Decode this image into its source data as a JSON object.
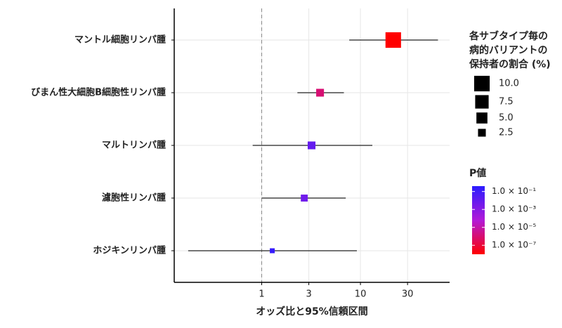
{
  "chart_data": {
    "type": "forest",
    "x_label": "オッズ比と95%信頼区間",
    "categories": [
      "マントル細胞リンパ腫",
      "びまん性大細胞B細胞性リンパ腫",
      "マルトリンパ腫",
      "濾胞性リンパ腫",
      "ホジキンリンパ腫"
    ],
    "values": [
      21.5,
      3.9,
      3.2,
      2.7,
      1.28
    ],
    "lower": [
      7.7,
      2.3,
      0.81,
      1.0,
      0.18
    ],
    "upper": [
      61,
      6.8,
      13.2,
      7.1,
      9.2
    ],
    "sizes": [
      10,
      2.5,
      2.5,
      2,
      1
    ],
    "p_values": [
      1e-08,
      1e-06,
      0.01,
      0.005,
      0.2
    ],
    "xscale": "log",
    "xlim": [
      0.13,
      80
    ],
    "xticks": [
      1,
      3,
      10,
      30
    ],
    "ref_line": 1,
    "grid": true,
    "size_legend": {
      "title": [
        "各サブタイプ毎の",
        "病的バリアントの",
        "保持者の割合 (%)"
      ],
      "ticks": [
        {
          "value": 10,
          "label": "10.0"
        },
        7.5,
        {
          "value": 5,
          "label": "5.0"
        },
        2.5
      ]
    },
    "color_legend": {
      "title": "P値",
      "scale": "log",
      "lim": [
        0.4,
        1e-08
      ],
      "colors": [
        "#2b1bff",
        "#b21ad8",
        "#ff0000"
      ],
      "ticks": [
        {
          "value": 0.1,
          "label": "1.0 × 10⁻¹"
        },
        {
          "value": 0.001,
          "label": "1.0 × 10⁻³"
        },
        {
          "value": 1e-05,
          "label": "1.0 × 10⁻⁵"
        },
        {
          "value": 1e-07,
          "label": "1.0 × 10⁻⁷"
        }
      ]
    }
  }
}
